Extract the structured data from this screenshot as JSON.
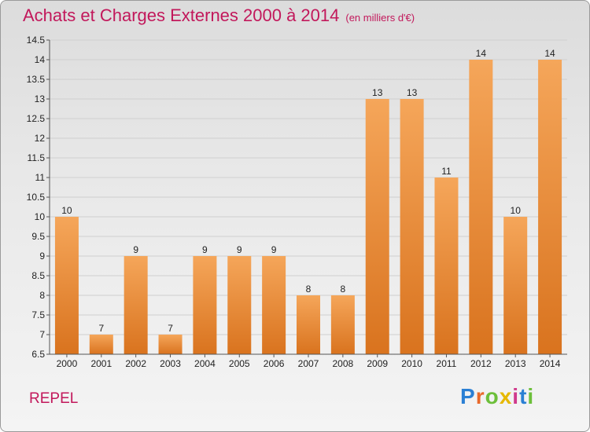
{
  "header": {
    "title": "Achats et Charges Externes 2000 à 2014",
    "unit": "(en milliers d'€)"
  },
  "footer": {
    "place": "REPEL",
    "brand_letters": [
      "P",
      "r",
      "o",
      "x",
      "i",
      "t",
      "i"
    ]
  },
  "colors": {
    "bar_top": "#f5a65a",
    "bar_bottom": "#d9731e",
    "title": "#c2185b",
    "grid": "#cfcfcf"
  },
  "chart_data": {
    "type": "bar",
    "title": "Achats et Charges Externes 2000 à 2014",
    "xlabel": "",
    "ylabel": "",
    "categories": [
      "2000",
      "2001",
      "2002",
      "2003",
      "2004",
      "2005",
      "2006",
      "2007",
      "2008",
      "2009",
      "2010",
      "2011",
      "2012",
      "2013",
      "2014"
    ],
    "values": [
      10,
      7,
      9,
      7,
      9,
      9,
      9,
      8,
      8,
      13,
      13,
      11,
      14,
      10,
      14
    ],
    "ylim": [
      6.5,
      14.5
    ],
    "yticks": [
      "6.5",
      "7",
      "7.5",
      "8",
      "8.5",
      "9",
      "9.5",
      "10",
      "10.5",
      "11",
      "11.5",
      "12",
      "12.5",
      "13",
      "13.5",
      "14",
      "14.5"
    ],
    "grid": true,
    "legend": "none"
  }
}
